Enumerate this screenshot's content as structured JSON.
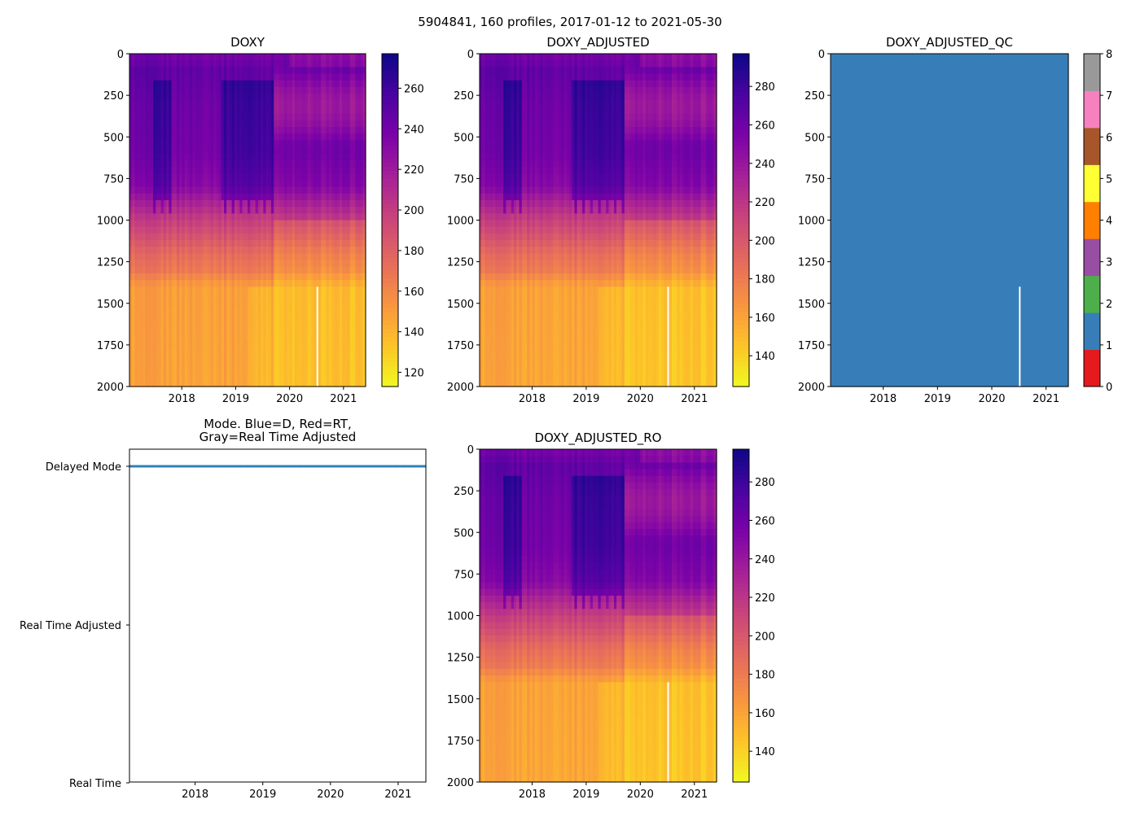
{
  "figure_title": "5904841, 160 profiles, 2017-01-12 to 2021-05-30",
  "chart_data": [
    {
      "type": "heatmap",
      "title": "DOXY",
      "xlim": [
        2017.03,
        2021.41
      ],
      "ylim": [
        2000,
        0
      ],
      "xticks": [
        "2018",
        "2019",
        "2020",
        "2021"
      ],
      "yticks": [
        "0",
        "250",
        "500",
        "750",
        "1000",
        "1250",
        "1500",
        "1750",
        "2000"
      ],
      "colormap": "plasma_r",
      "clim": [
        113,
        277
      ],
      "cbar_ticks": [
        "120",
        "140",
        "160",
        "180",
        "200",
        "220",
        "240",
        "260"
      ],
      "scale": 1.0,
      "gap": {
        "time": 2020.5,
        "depth_from": 1400
      }
    },
    {
      "type": "heatmap",
      "title": "DOXY_ADJUSTED",
      "xlim": [
        2017.03,
        2021.41
      ],
      "ylim": [
        2000,
        0
      ],
      "xticks": [
        "2018",
        "2019",
        "2020",
        "2021"
      ],
      "yticks": [
        "0",
        "250",
        "500",
        "750",
        "1000",
        "1250",
        "1500",
        "1750",
        "2000"
      ],
      "colormap": "plasma_r",
      "clim": [
        124,
        297
      ],
      "cbar_ticks": [
        "140",
        "160",
        "180",
        "200",
        "220",
        "240",
        "260",
        "280"
      ],
      "scale": 1.075,
      "gap": {
        "time": 2020.5,
        "depth_from": 1400
      }
    },
    {
      "type": "heatmap",
      "title": "DOXY_ADJUSTED_QC",
      "xlim": [
        2017.03,
        2021.41
      ],
      "ylim": [
        2000,
        0
      ],
      "xticks": [
        "2018",
        "2019",
        "2020",
        "2021"
      ],
      "yticks": [
        "0",
        "250",
        "500",
        "750",
        "1000",
        "1250",
        "1500",
        "1750",
        "2000"
      ],
      "value": 1,
      "clim": [
        0,
        8
      ],
      "cbar_ticks": [
        "0",
        "1",
        "2",
        "3",
        "4",
        "5",
        "6",
        "7",
        "8"
      ],
      "qc_colors": [
        "#e41a1c",
        "#377eb8",
        "#4daf4a",
        "#984ea3",
        "#ff7f00",
        "#ffff33",
        "#a65628",
        "#f781bf",
        "#999999"
      ],
      "gap": {
        "time": 2020.5,
        "depth_from": 1400
      }
    },
    {
      "type": "scatter",
      "title": "Mode. Blue=D, Red=RT,",
      "title_line2": "Gray=Real Time Adjusted",
      "xlim": [
        2017.03,
        2021.41
      ],
      "xticks": [
        "2018",
        "2019",
        "2020",
        "2021"
      ],
      "ycategories": [
        "Delayed Mode",
        "Real Time Adjusted",
        "Real Time"
      ],
      "profiles": 160,
      "mode_value": "Delayed Mode",
      "color": "#1f77b4"
    },
    {
      "type": "heatmap",
      "title": "DOXY_ADJUSTED_RO",
      "xlim": [
        2017.03,
        2021.41
      ],
      "ylim": [
        2000,
        0
      ],
      "xticks": [
        "2018",
        "2019",
        "2020",
        "2021"
      ],
      "yticks": [
        "0",
        "250",
        "500",
        "750",
        "1000",
        "1250",
        "1500",
        "1750",
        "2000"
      ],
      "colormap": "plasma_r",
      "clim": [
        124,
        297
      ],
      "cbar_ticks": [
        "140",
        "160",
        "180",
        "200",
        "220",
        "240",
        "260",
        "280"
      ],
      "scale": 1.075,
      "gap": {
        "time": 2020.5,
        "depth_from": 1400
      }
    }
  ],
  "depth_profile": {
    "depths": [
      0,
      100,
      300,
      600,
      800,
      900,
      1000,
      1100,
      1200,
      1300,
      1400,
      2000
    ],
    "values": [
      238,
      248,
      243,
      240,
      232,
      215,
      200,
      188,
      175,
      168,
      150,
      148
    ]
  }
}
